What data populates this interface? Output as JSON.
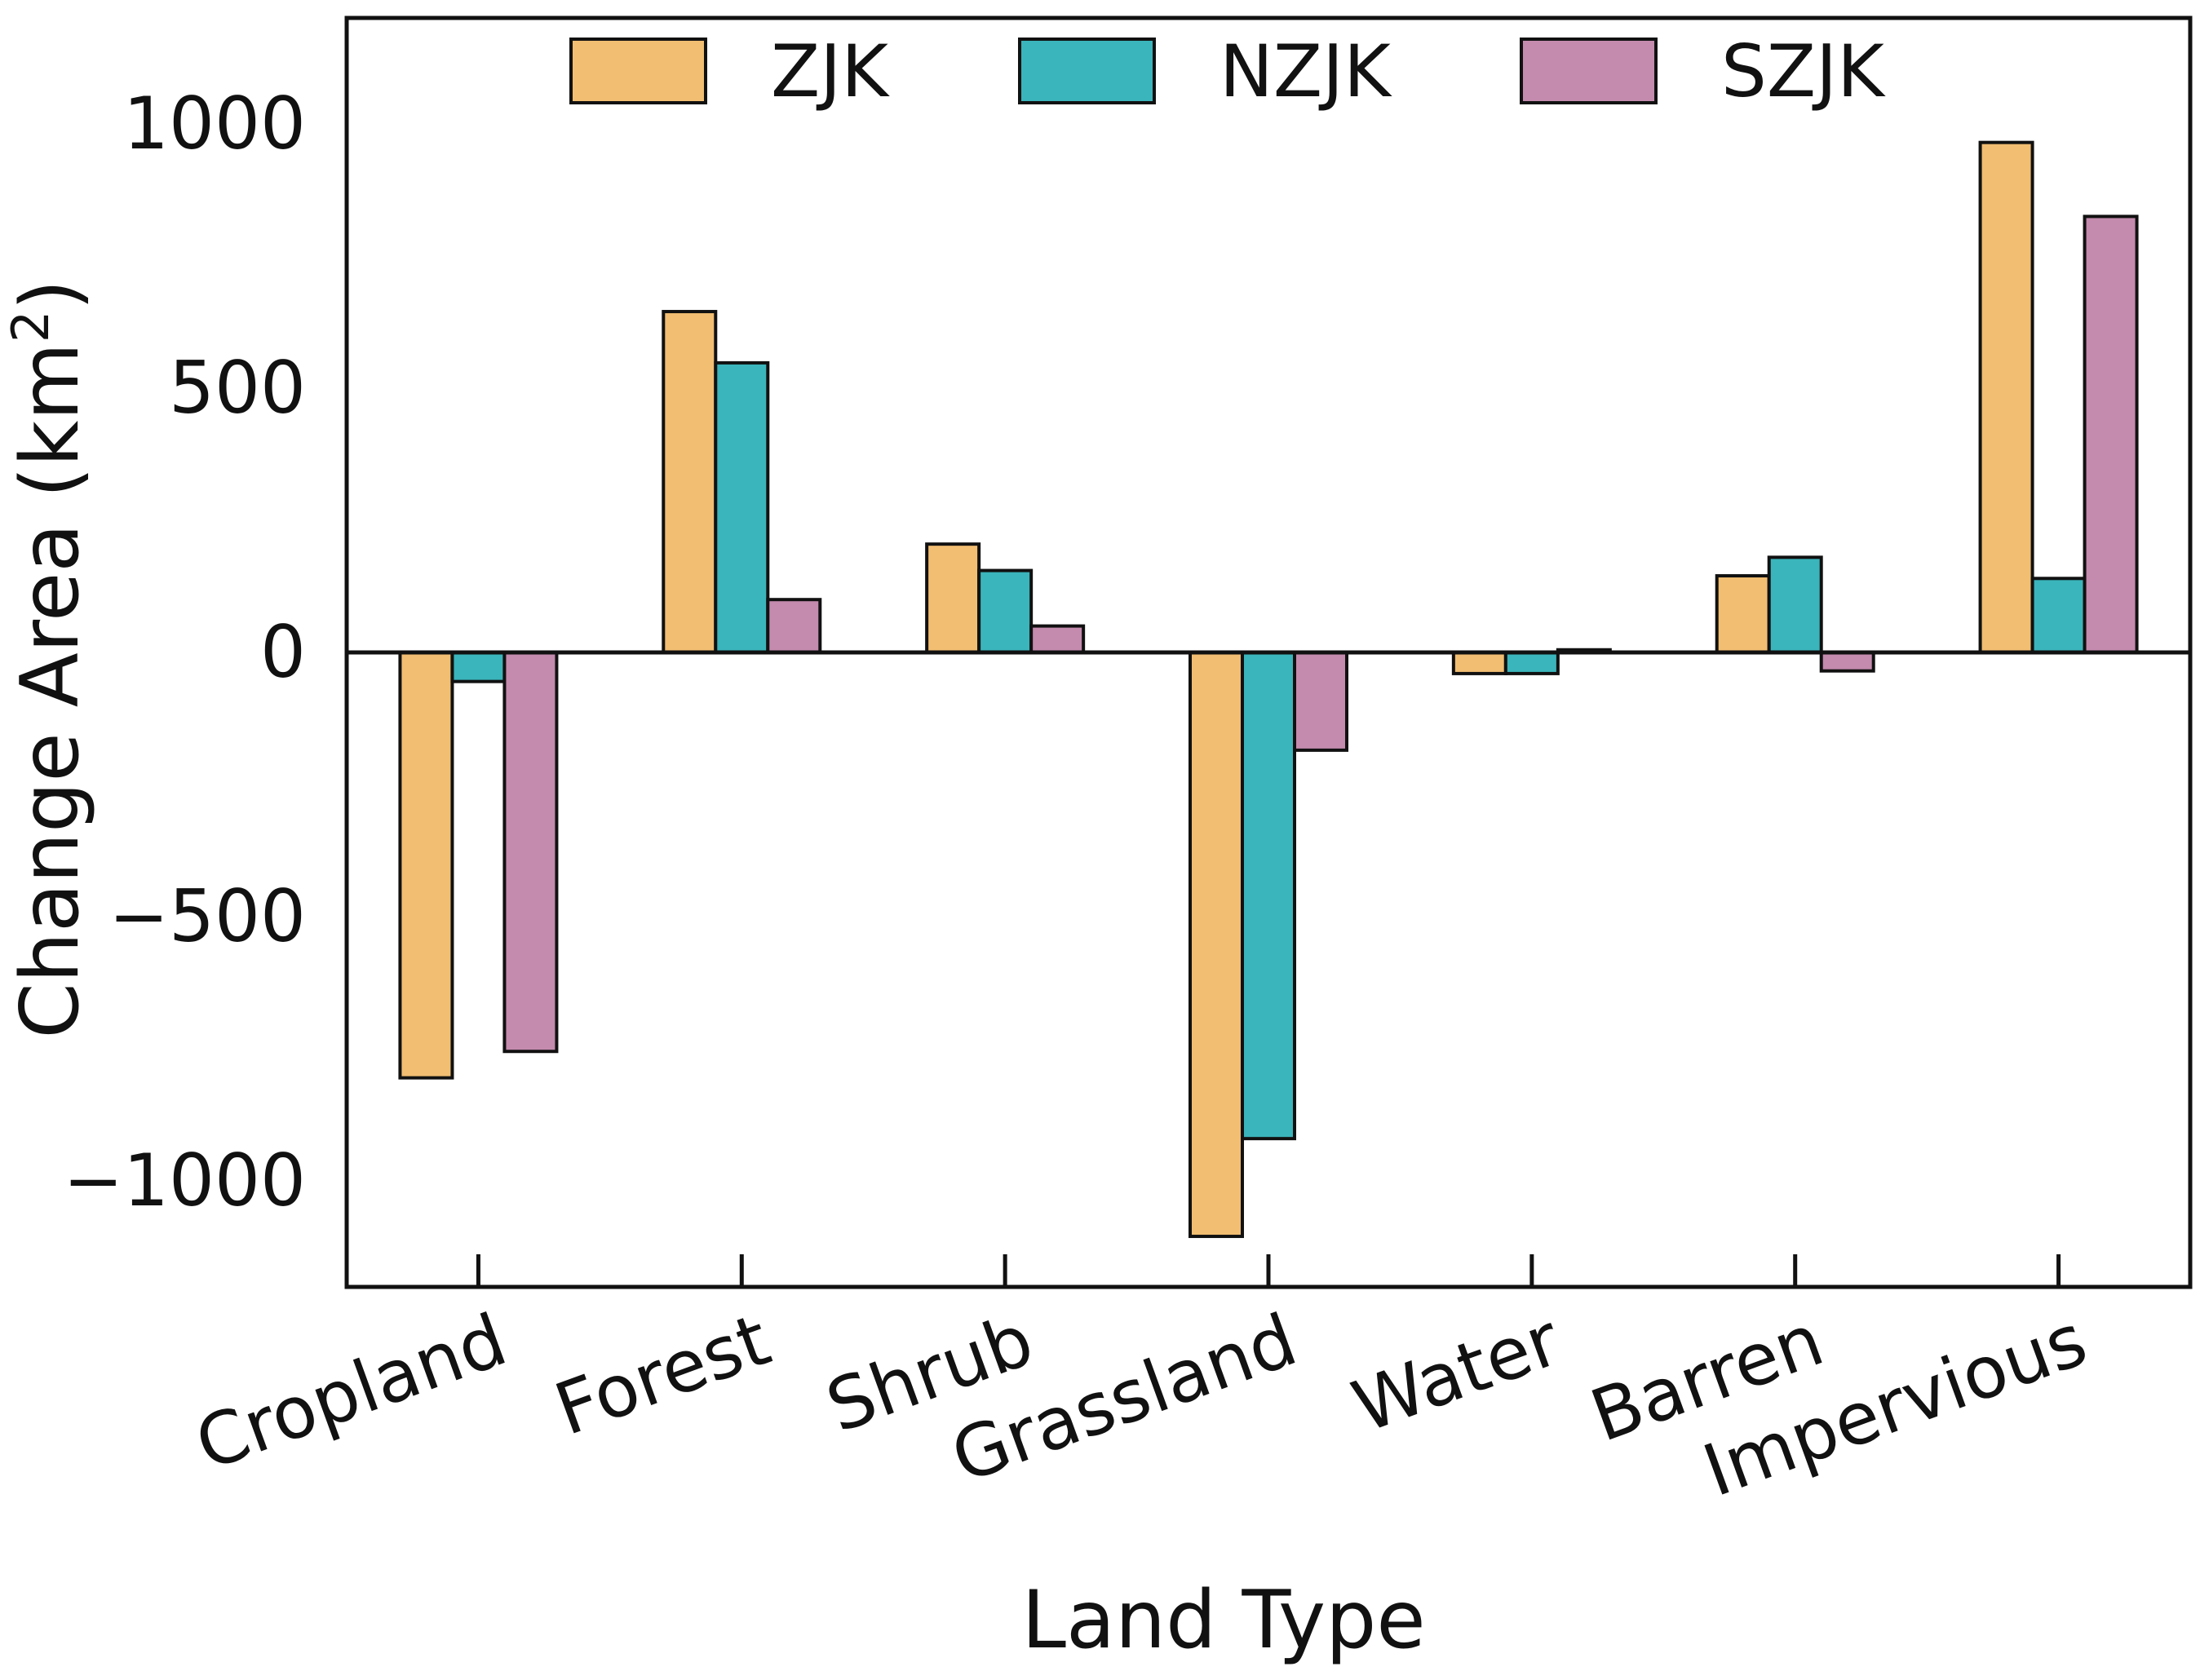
{
  "chart_data": {
    "type": "bar",
    "title": "",
    "xlabel": "Land Type",
    "ylabel": "Change Area (km",
    "ylabel_sup": "2",
    "ylabel_close": ")",
    "categories": [
      "Cropland",
      "Forest",
      "Shrub",
      "Grassland",
      "Water",
      "Barren",
      "Impervious"
    ],
    "series": [
      {
        "name": "ZJK",
        "color": "#F2BE72",
        "values": [
          -805,
          645,
          205,
          -1105,
          -40,
          145,
          965
        ]
      },
      {
        "name": "NZJK",
        "color": "#3AB5BB",
        "values": [
          -55,
          548,
          155,
          -920,
          -40,
          180,
          140
        ]
      },
      {
        "name": "SZJK",
        "color": "#C48BAE",
        "values": [
          -755,
          100,
          50,
          -185,
          5,
          -35,
          825
        ]
      }
    ],
    "ylim": [
      -1200,
      1200
    ],
    "yticks": [
      1000,
      500,
      0,
      -500,
      -1000
    ],
    "ytick_labels": [
      "1000",
      "500",
      "0",
      "−500",
      "−1000"
    ],
    "legend_position": "top-center",
    "grid": false
  }
}
